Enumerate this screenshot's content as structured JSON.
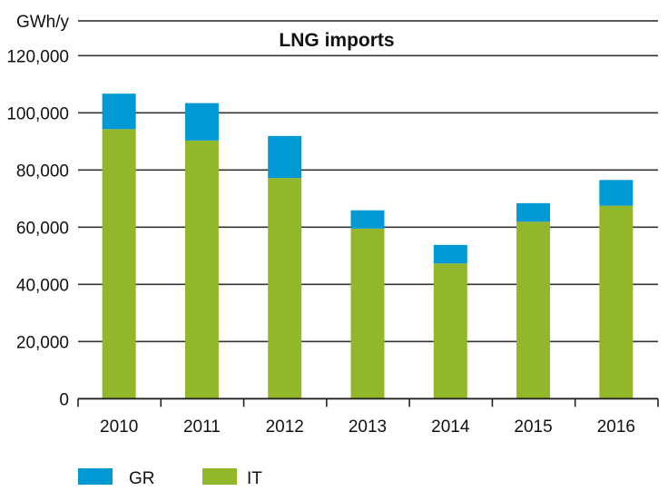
{
  "chart_data": {
    "type": "bar",
    "stacked": true,
    "title": "LNG imports",
    "unit_label": "GWh/y",
    "xlabel": "",
    "ylabel": "GWh/y",
    "ylim": [
      0,
      120000
    ],
    "yticks": [
      0,
      20000,
      40000,
      60000,
      80000,
      100000,
      120000
    ],
    "ytick_labels": [
      "0",
      "20,000",
      "40,000",
      "60,000",
      "80,000",
      "100,000",
      "120,000"
    ],
    "grid": true,
    "categories": [
      "2010",
      "2011",
      "2012",
      "2013",
      "2014",
      "2015",
      "2016"
    ],
    "series": [
      {
        "name": "IT",
        "color": "#93b72b",
        "values": [
          94300,
          90300,
          77200,
          59500,
          47300,
          61900,
          67500
        ]
      },
      {
        "name": "GR",
        "color": "#0099d3",
        "values": [
          12400,
          13100,
          14700,
          6400,
          6500,
          6500,
          9000
        ]
      }
    ],
    "legend": {
      "position": "bottom-left",
      "entries": [
        "GR",
        "IT"
      ]
    }
  }
}
